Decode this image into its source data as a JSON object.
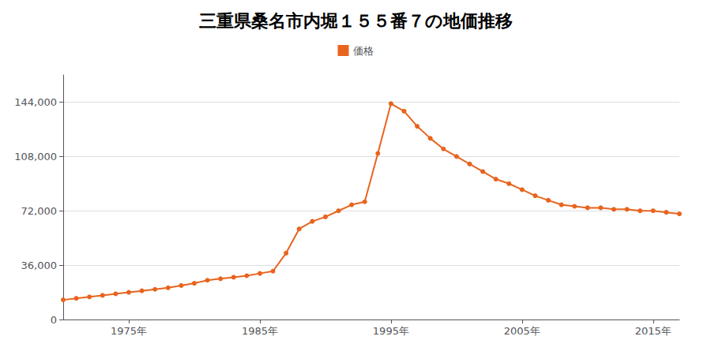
{
  "chart_data": {
    "type": "line",
    "title": "三重県桑名市内堀１５５番７の地価推移",
    "x": [
      1970,
      1971,
      1972,
      1973,
      1974,
      1975,
      1976,
      1977,
      1978,
      1979,
      1980,
      1981,
      1982,
      1983,
      1984,
      1985,
      1986,
      1987,
      1988,
      1989,
      1990,
      1991,
      1992,
      1993,
      1994,
      1995,
      1996,
      1997,
      1998,
      1999,
      2000,
      2001,
      2002,
      2003,
      2004,
      2005,
      2006,
      2007,
      2008,
      2009,
      2010,
      2011,
      2012,
      2013,
      2014,
      2015,
      2016,
      2017
    ],
    "series": [
      {
        "name": "価格",
        "color": "#e8641e",
        "marker": "circle",
        "line_style": "solid",
        "values": [
          13000,
          14000,
          15000,
          16000,
          17000,
          18000,
          19000,
          20000,
          21000,
          22500,
          24000,
          26000,
          27000,
          28000,
          29000,
          30500,
          32000,
          44000,
          60000,
          65000,
          68000,
          72000,
          76000,
          78000,
          110000,
          143000,
          138000,
          128000,
          120000,
          113000,
          108000,
          103000,
          98000,
          93000,
          90000,
          86000,
          82000,
          79000,
          76000,
          75000,
          74000,
          74000,
          73000,
          73000,
          72000,
          72000,
          71000,
          70000
        ]
      }
    ],
    "xlim": [
      1970,
      2017
    ],
    "xticks": [
      {
        "value": 1975,
        "label": "1975年"
      },
      {
        "value": 1985,
        "label": "1985年"
      },
      {
        "value": 1995,
        "label": "1995年"
      },
      {
        "value": 2005,
        "label": "2005年"
      },
      {
        "value": 2015,
        "label": "2015年"
      }
    ],
    "ylim": [
      0,
      162000
    ],
    "yticks": [
      0,
      {
        "value": 36000,
        "label": "36,000"
      },
      {
        "value": 72000,
        "label": "72,000"
      },
      {
        "value": 108000,
        "label": "108,000"
      },
      {
        "value": 144000,
        "label": "144,000"
      }
    ],
    "grid": true,
    "legend": "top"
  }
}
